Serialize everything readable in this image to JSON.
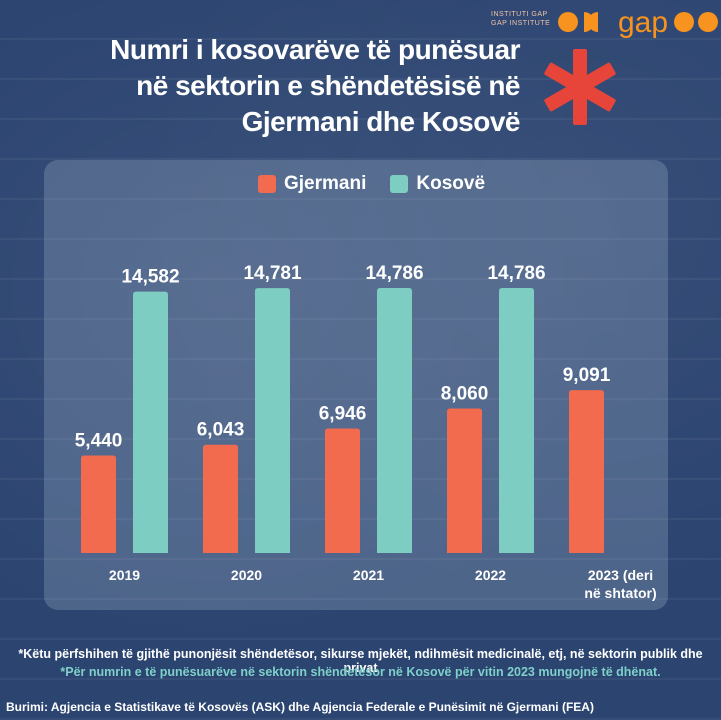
{
  "header": {
    "logo_line1": "INSTITUTI GAP",
    "logo_line2": "GAP INSTITUTE",
    "logo_word": "gap",
    "title_lines": [
      "Numri i kosovarëve të punësuar",
      "në sektorin e shëndetësisë në",
      "Gjermani dhe Kosovë"
    ],
    "icon": "medical-asterisk-icon"
  },
  "colors": {
    "germany": "#f26b4f",
    "kosovo": "#7dcdc3",
    "brand_orange": "#f7931e",
    "asterisk": "#e8453a"
  },
  "chart_data": {
    "type": "bar",
    "categories": [
      [
        "2019"
      ],
      [
        "2020"
      ],
      [
        "2021"
      ],
      [
        "2022"
      ],
      [
        "2023 (deri",
        "në shtator)"
      ]
    ],
    "series": [
      {
        "name": "Gjermani",
        "values": [
          5440,
          6043,
          6946,
          8060,
          9091
        ],
        "labels": [
          "5,440",
          "6,043",
          "6,946",
          "8,060",
          "9,091"
        ]
      },
      {
        "name": "Kosovë",
        "values": [
          14582,
          14781,
          14786,
          14786,
          null
        ],
        "labels": [
          "14,582",
          "14,781",
          "14,786",
          "14,786",
          ""
        ]
      }
    ],
    "legend_position": "top-center",
    "grid": false
  },
  "footer": {
    "note1": "*Këtu përfshihen të gjithë punonjësit shëndetësor, sikurse mjekët, ndihmësit medicinalë, etj, në sektorin publik dhe privat",
    "note2": "*Për numrin e të punësuarëve në sektorin shëndetësor në Kosovë për vitin 2023 mungojnë të dhënat.",
    "source": "Burimi: Agjencia e Statistikave të Kosovës (ASK) dhe Agjencia Federale e Punësimit në Gjermani (FEA)"
  }
}
